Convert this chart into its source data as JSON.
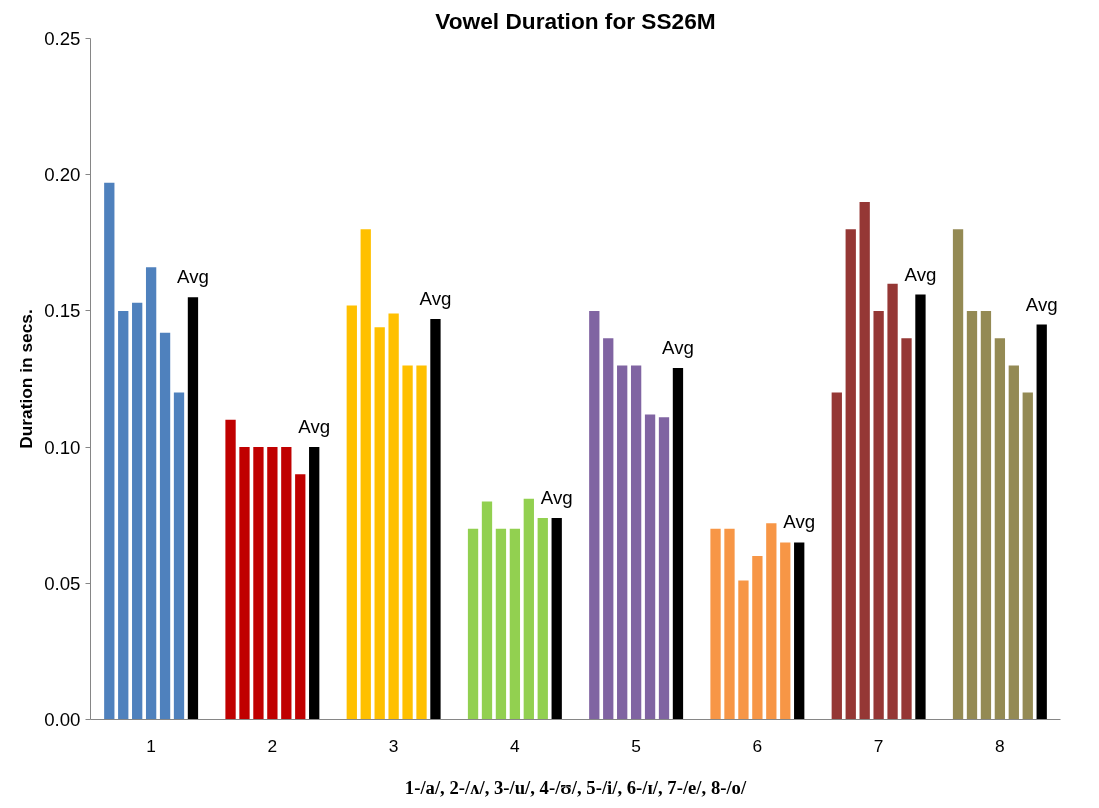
{
  "chart_data": {
    "type": "bar",
    "title": "Vowel Duration for SS26M",
    "xlabel": "1-/a/, 2-/ʌ/, 3-/u/, 4-/ʊ/, 5-/i/, 6-/ɪ/, 7-/e/, 8-/o/",
    "ylabel": "Duration in secs.",
    "categories": [
      "1",
      "2",
      "3",
      "4",
      "5",
      "6",
      "7",
      "8"
    ],
    "series": [
      {
        "colors": [
          "#4f81bd",
          "#c00000",
          "#ffc000",
          "#92d050",
          "#8064a2",
          "#f79646",
          "#953735",
          "#948a54"
        ],
        "values": [
          0.197,
          0.11,
          0.152,
          0.07,
          0.15,
          0.07,
          0.12,
          0.18
        ]
      },
      {
        "colors": [
          "#4f81bd",
          "#c00000",
          "#ffc000",
          "#92d050",
          "#8064a2",
          "#f79646",
          "#953735",
          "#948a54"
        ],
        "values": [
          0.15,
          0.1,
          0.18,
          0.08,
          0.14,
          0.07,
          0.18,
          0.15
        ]
      },
      {
        "colors": [
          "#4f81bd",
          "#c00000",
          "#ffc000",
          "#92d050",
          "#8064a2",
          "#f79646",
          "#953735",
          "#948a54"
        ],
        "values": [
          0.153,
          0.1,
          0.144,
          0.07,
          0.13,
          0.051,
          0.19,
          0.15
        ]
      },
      {
        "colors": [
          "#4f81bd",
          "#c00000",
          "#ffc000",
          "#92d050",
          "#8064a2",
          "#f79646",
          "#953735",
          "#948a54"
        ],
        "values": [
          0.166,
          0.1,
          0.149,
          0.07,
          0.13,
          0.06,
          0.15,
          0.14
        ]
      },
      {
        "colors": [
          "#4f81bd",
          "#c00000",
          "#ffc000",
          "#92d050",
          "#8064a2",
          "#f79646",
          "#953735",
          "#948a54"
        ],
        "values": [
          0.142,
          0.1,
          0.13,
          0.081,
          0.112,
          0.072,
          0.16,
          0.13
        ]
      },
      {
        "colors": [
          "#4f81bd",
          "#c00000",
          "#ffc000",
          "#92d050",
          "#8064a2",
          "#f79646",
          "#953735",
          "#948a54"
        ],
        "values": [
          0.12,
          0.09,
          0.13,
          0.074,
          0.111,
          0.065,
          0.14,
          0.12
        ]
      },
      {
        "color": "#000000",
        "values": [
          0.155,
          0.1,
          0.147,
          0.074,
          0.129,
          0.065,
          0.156,
          0.145
        ]
      }
    ],
    "ylim": [
      0,
      0.25
    ],
    "yticks": [
      {
        "value": 0,
        "label": "0.00"
      },
      {
        "value": 0.05,
        "label": "0.05"
      },
      {
        "value": 0.1,
        "label": "0.10"
      },
      {
        "value": 0.15,
        "label": "0.15"
      },
      {
        "value": 0.2,
        "label": "0.20"
      },
      {
        "value": 0.25,
        "label": "0.25"
      }
    ],
    "grid": false,
    "annotations": [
      "Avg",
      "Avg",
      "Avg",
      "Avg",
      "Avg",
      "Avg",
      "Avg",
      "Avg"
    ]
  }
}
